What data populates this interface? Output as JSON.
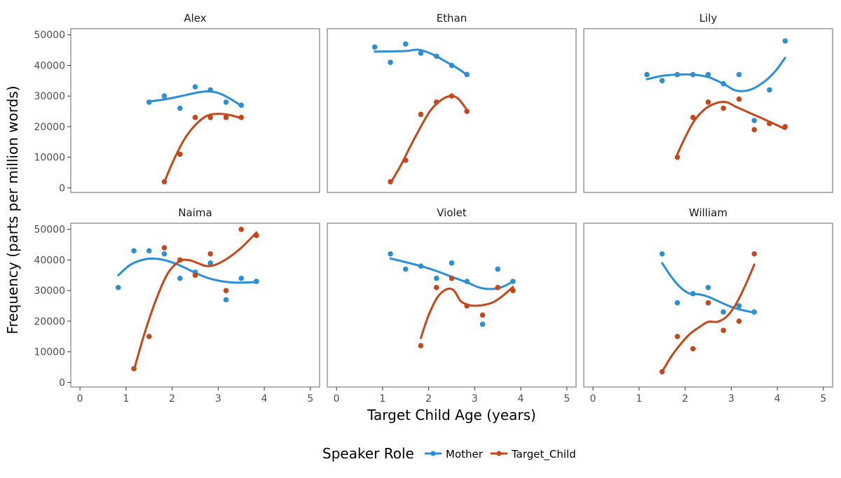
{
  "chart_data": {
    "type": "scatter",
    "xlabel": "Target Child Age (years)",
    "ylabel": "Frequency (parts per million words)",
    "xlim": [
      -0.2,
      5.2
    ],
    "ylim": [
      -1500,
      52000
    ],
    "xticks": [
      0,
      1,
      2,
      3,
      4,
      5
    ],
    "yticks": [
      0,
      10000,
      20000,
      30000,
      40000,
      50000
    ],
    "ytick_labels": [
      "0",
      "10000",
      "20000",
      "30000",
      "40000",
      "50000"
    ],
    "grid": false,
    "smooth": "loess",
    "legend": {
      "position": "bottom",
      "title": "Speaker Role",
      "entries": [
        "Mother",
        "Target_Child"
      ]
    },
    "colors": {
      "Mother": "#2b8fd6",
      "Target_Child": "#c6471a"
    },
    "panels": [
      {
        "name": "Alex",
        "series": [
          {
            "name": "Mother",
            "points": [
              [
                1.5,
                28000
              ],
              [
                1.83,
                30000
              ],
              [
                2.17,
                26000
              ],
              [
                2.5,
                33000
              ],
              [
                2.83,
                32000
              ],
              [
                3.17,
                28000
              ],
              [
                3.5,
                27000
              ]
            ],
            "smooth": [
              [
                1.5,
                28200
              ],
              [
                1.83,
                28900
              ],
              [
                2.17,
                29900
              ],
              [
                2.5,
                31000
              ],
              [
                2.75,
                31500
              ],
              [
                3.0,
                31000
              ],
              [
                3.25,
                29200
              ],
              [
                3.5,
                26800
              ]
            ]
          },
          {
            "name": "Target_Child",
            "points": [
              [
                1.83,
                2000
              ],
              [
                2.17,
                11000
              ],
              [
                2.5,
                23000
              ],
              [
                2.83,
                23000
              ],
              [
                3.17,
                23000
              ],
              [
                3.5,
                23000
              ]
            ],
            "smooth": [
              [
                1.83,
                1800
              ],
              [
                2.0,
                8000
              ],
              [
                2.25,
                15500
              ],
              [
                2.5,
                20500
              ],
              [
                2.75,
                23500
              ],
              [
                3.0,
                24200
              ],
              [
                3.25,
                23800
              ],
              [
                3.5,
                22800
              ]
            ]
          }
        ]
      },
      {
        "name": "Ethan",
        "series": [
          {
            "name": "Mother",
            "points": [
              [
                0.83,
                46000
              ],
              [
                1.17,
                41000
              ],
              [
                1.5,
                47000
              ],
              [
                1.83,
                44000
              ],
              [
                2.17,
                43000
              ],
              [
                2.5,
                40000
              ],
              [
                2.83,
                37000
              ]
            ],
            "smooth": [
              [
                0.83,
                44500
              ],
              [
                1.17,
                44600
              ],
              [
                1.5,
                44700
              ],
              [
                1.8,
                45100
              ],
              [
                2.1,
                43500
              ],
              [
                2.4,
                41000
              ],
              [
                2.6,
                39300
              ],
              [
                2.83,
                37000
              ]
            ]
          },
          {
            "name": "Target_Child",
            "points": [
              [
                1.17,
                2000
              ],
              [
                1.5,
                9000
              ],
              [
                1.83,
                24000
              ],
              [
                2.17,
                28000
              ],
              [
                2.5,
                30000
              ],
              [
                2.83,
                25000
              ]
            ],
            "smooth": [
              [
                1.17,
                1500
              ],
              [
                1.4,
                7500
              ],
              [
                1.6,
                13500
              ],
              [
                1.83,
                20000
              ],
              [
                2.05,
                25500
              ],
              [
                2.3,
                29000
              ],
              [
                2.5,
                30000
              ],
              [
                2.65,
                29000
              ],
              [
                2.83,
                25500
              ]
            ]
          }
        ]
      },
      {
        "name": "Lily",
        "series": [
          {
            "name": "Mother",
            "points": [
              [
                1.17,
                37000
              ],
              [
                1.5,
                35000
              ],
              [
                1.83,
                37000
              ],
              [
                2.17,
                37000
              ],
              [
                2.5,
                37000
              ],
              [
                2.83,
                34000
              ],
              [
                3.17,
                37000
              ],
              [
                3.5,
                22000
              ],
              [
                3.83,
                32000
              ],
              [
                4.17,
                48000
              ]
            ],
            "smooth": [
              [
                1.17,
                35500
              ],
              [
                1.5,
                36600
              ],
              [
                1.83,
                37000
              ],
              [
                2.17,
                37000
              ],
              [
                2.5,
                36200
              ],
              [
                2.83,
                34000
              ],
              [
                3.1,
                31800
              ],
              [
                3.4,
                32000
              ],
              [
                3.7,
                34500
              ],
              [
                3.95,
                38000
              ],
              [
                4.17,
                42500
              ]
            ]
          },
          {
            "name": "Target_Child",
            "points": [
              [
                1.83,
                10000
              ],
              [
                2.17,
                23000
              ],
              [
                2.5,
                28000
              ],
              [
                2.83,
                26000
              ],
              [
                3.17,
                29000
              ],
              [
                3.5,
                19000
              ],
              [
                3.83,
                21000
              ],
              [
                4.17,
                20000
              ]
            ],
            "smooth": [
              [
                1.83,
                11000
              ],
              [
                2.0,
                16500
              ],
              [
                2.2,
                22000
              ],
              [
                2.45,
                26000
              ],
              [
                2.7,
                27800
              ],
              [
                2.9,
                28000
              ],
              [
                3.1,
                26500
              ],
              [
                3.4,
                24500
              ],
              [
                3.7,
                22500
              ],
              [
                3.95,
                20800
              ],
              [
                4.17,
                19200
              ]
            ]
          }
        ]
      },
      {
        "name": "Naima",
        "series": [
          {
            "name": "Mother",
            "points": [
              [
                0.83,
                31000
              ],
              [
                1.17,
                43000
              ],
              [
                1.5,
                43000
              ],
              [
                1.83,
                42000
              ],
              [
                2.17,
                34000
              ],
              [
                2.5,
                36000
              ],
              [
                2.83,
                39000
              ],
              [
                3.17,
                27000
              ],
              [
                3.5,
                34000
              ],
              [
                3.83,
                33000
              ]
            ],
            "smooth": [
              [
                0.83,
                35000
              ],
              [
                1.1,
                38500
              ],
              [
                1.4,
                40200
              ],
              [
                1.65,
                40400
              ],
              [
                1.9,
                39700
              ],
              [
                2.2,
                38000
              ],
              [
                2.5,
                35800
              ],
              [
                2.8,
                34000
              ],
              [
                3.1,
                33000
              ],
              [
                3.4,
                32600
              ],
              [
                3.83,
                32800
              ]
            ]
          },
          {
            "name": "Target_Child",
            "points": [
              [
                1.17,
                4500
              ],
              [
                1.5,
                15000
              ],
              [
                1.83,
                44000
              ],
              [
                2.17,
                40000
              ],
              [
                2.5,
                35000
              ],
              [
                2.83,
                42000
              ],
              [
                3.17,
                30000
              ],
              [
                3.5,
                50000
              ],
              [
                3.83,
                48000
              ]
            ],
            "smooth": [
              [
                1.17,
                4000
              ],
              [
                1.4,
                16000
              ],
              [
                1.65,
                27000
              ],
              [
                1.9,
                35500
              ],
              [
                2.15,
                39500
              ],
              [
                2.35,
                40000
              ],
              [
                2.55,
                39000
              ],
              [
                2.75,
                38000
              ],
              [
                2.95,
                38500
              ],
              [
                3.2,
                40500
              ],
              [
                3.5,
                44000
              ],
              [
                3.83,
                49000
              ]
            ]
          }
        ]
      },
      {
        "name": "Violet",
        "series": [
          {
            "name": "Mother",
            "points": [
              [
                1.17,
                42000
              ],
              [
                1.5,
                37000
              ],
              [
                1.83,
                38000
              ],
              [
                2.17,
                34000
              ],
              [
                2.5,
                39000
              ],
              [
                2.83,
                33000
              ],
              [
                3.17,
                19000
              ],
              [
                3.5,
                37000
              ],
              [
                3.83,
                33000
              ]
            ],
            "smooth": [
              [
                1.17,
                40500
              ],
              [
                1.5,
                39300
              ],
              [
                1.83,
                38000
              ],
              [
                2.17,
                36400
              ],
              [
                2.5,
                34500
              ],
              [
                2.83,
                32700
              ],
              [
                3.1,
                31000
              ],
              [
                3.35,
                30500
              ],
              [
                3.6,
                31200
              ],
              [
                3.83,
                33000
              ]
            ]
          },
          {
            "name": "Target_Child",
            "points": [
              [
                1.83,
                12000
              ],
              [
                2.17,
                31000
              ],
              [
                2.5,
                34000
              ],
              [
                2.83,
                25000
              ],
              [
                3.17,
                22000
              ],
              [
                3.5,
                31000
              ],
              [
                3.83,
                30000
              ]
            ],
            "smooth": [
              [
                1.83,
                14500
              ],
              [
                2.0,
                22000
              ],
              [
                2.2,
                28000
              ],
              [
                2.4,
                30500
              ],
              [
                2.55,
                30000
              ],
              [
                2.7,
                26500
              ],
              [
                2.9,
                25200
              ],
              [
                3.15,
                25200
              ],
              [
                3.4,
                26200
              ],
              [
                3.6,
                28200
              ],
              [
                3.83,
                31200
              ]
            ]
          }
        ]
      },
      {
        "name": "William",
        "series": [
          {
            "name": "Mother",
            "points": [
              [
                1.5,
                42000
              ],
              [
                1.83,
                26000
              ],
              [
                2.17,
                29000
              ],
              [
                2.5,
                31000
              ],
              [
                2.83,
                23000
              ],
              [
                3.17,
                25000
              ],
              [
                3.5,
                23000
              ]
            ],
            "smooth": [
              [
                1.5,
                39000
              ],
              [
                1.7,
                34500
              ],
              [
                1.9,
                31000
              ],
              [
                2.1,
                29000
              ],
              [
                2.3,
                28800
              ],
              [
                2.5,
                28000
              ],
              [
                2.75,
                26300
              ],
              [
                3.0,
                24700
              ],
              [
                3.25,
                23600
              ],
              [
                3.5,
                22800
              ]
            ]
          },
          {
            "name": "Target_Child",
            "points": [
              [
                1.5,
                3500
              ],
              [
                1.83,
                15000
              ],
              [
                2.17,
                11000
              ],
              [
                2.5,
                26000
              ],
              [
                2.83,
                17000
              ],
              [
                3.17,
                20000
              ],
              [
                3.5,
                42000
              ]
            ],
            "smooth": [
              [
                1.5,
                3500
              ],
              [
                1.7,
                8500
              ],
              [
                1.9,
                12500
              ],
              [
                2.1,
                15800
              ],
              [
                2.3,
                18000
              ],
              [
                2.5,
                19800
              ],
              [
                2.7,
                19800
              ],
              [
                2.9,
                21500
              ],
              [
                3.1,
                25500
              ],
              [
                3.3,
                31500
              ],
              [
                3.5,
                38500
              ]
            ]
          }
        ]
      }
    ]
  }
}
